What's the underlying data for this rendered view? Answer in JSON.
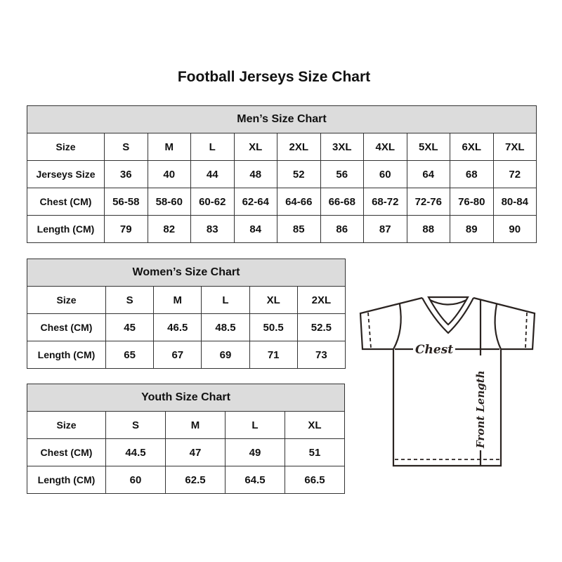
{
  "title": "Football Jerseys Size Chart",
  "tables": {
    "men": {
      "heading": "Men’s Size Chart",
      "rows": [
        [
          "Size",
          "S",
          "M",
          "L",
          "XL",
          "2XL",
          "3XL",
          "4XL",
          "5XL",
          "6XL",
          "7XL"
        ],
        [
          "Jerseys Size",
          "36",
          "40",
          "44",
          "48",
          "52",
          "56",
          "60",
          "64",
          "68",
          "72"
        ],
        [
          "Chest (CM)",
          "56-58",
          "58-60",
          "60-62",
          "62-64",
          "64-66",
          "66-68",
          "68-72",
          "72-76",
          "76-80",
          "80-84"
        ],
        [
          "Length (CM)",
          "79",
          "82",
          "83",
          "84",
          "85",
          "86",
          "87",
          "88",
          "89",
          "90"
        ]
      ]
    },
    "women": {
      "heading": "Women’s Size Chart",
      "rows": [
        [
          "Size",
          "S",
          "M",
          "L",
          "XL",
          "2XL"
        ],
        [
          "Chest (CM)",
          "45",
          "46.5",
          "48.5",
          "50.5",
          "52.5"
        ],
        [
          "Length (CM)",
          "65",
          "67",
          "69",
          "71",
          "73"
        ]
      ]
    },
    "youth": {
      "heading": "Youth Size Chart",
      "rows": [
        [
          "Size",
          "S",
          "M",
          "L",
          "XL"
        ],
        [
          "Chest (CM)",
          "44.5",
          "47",
          "49",
          "51"
        ],
        [
          "Length (CM)",
          "60",
          "62.5",
          "64.5",
          "66.5"
        ]
      ]
    }
  },
  "diagram": {
    "chest_label": "Chest",
    "length_label": "Front Length"
  },
  "colors": {
    "header_bg": "#dcdcdc",
    "line": "#2a2320"
  }
}
